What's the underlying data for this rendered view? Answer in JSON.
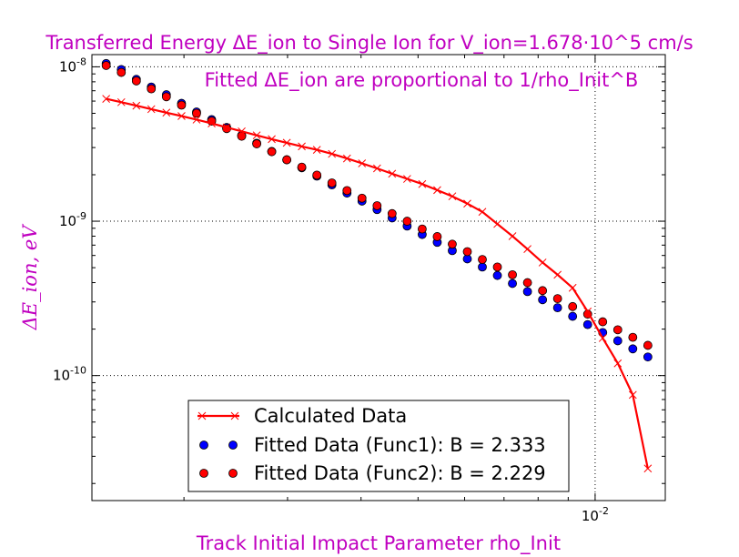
{
  "chart_data": {
    "type": "scatter",
    "title": "Transferred Energy ΔE_ion to Single Ion for  V_ion=1.678·10^5  cm/s",
    "annotation": "Fitted ΔE_ion are proportional to 1/rho_Init^B",
    "xlabel": "Track Initial Impact Parameter rho_Init",
    "ylabel": "ΔE_ion, eV",
    "xscale": "log",
    "yscale": "log",
    "xlim": [
      0.001395,
      0.01316
    ],
    "ylim": [
      1.55e-11,
      1.2e-08
    ],
    "grid": true,
    "legend_position": "lower-center",
    "x_tick_labels": {
      "x": [
        "10^-2"
      ]
    },
    "y_tick_labels": [
      "10^-8",
      "10^-9",
      "10^-10"
    ],
    "series": [
      {
        "name": "Calculated Data",
        "color": "#ff0000",
        "marker": "x",
        "style": "line",
        "x": [
          0.001475,
          0.001565,
          0.00166,
          0.00176,
          0.001867,
          0.001981,
          0.002101,
          0.002229,
          0.002364,
          0.002507,
          0.002659,
          0.00282,
          0.002991,
          0.003172,
          0.003365,
          0.003569,
          0.003786,
          0.004015,
          0.004259,
          0.004517,
          0.004791,
          0.005082,
          0.00539,
          0.005717,
          0.006064,
          0.006431,
          0.006821,
          0.007235,
          0.007674,
          0.00814,
          0.008633,
          0.009157,
          0.009712,
          0.010301,
          0.010926,
          0.011589,
          0.012292
        ],
        "y": [
          6.2e-09,
          5.9e-09,
          5.6e-09,
          5.32e-09,
          5.05e-09,
          4.8e-09,
          4.55e-09,
          4.3e-09,
          4.05e-09,
          3.82e-09,
          3.6e-09,
          3.4e-09,
          3.22e-09,
          3.05e-09,
          2.9e-09,
          2.73e-09,
          2.55e-09,
          2.37e-09,
          2.2e-09,
          2.03e-09,
          1.88e-09,
          1.74e-09,
          1.59e-09,
          1.45e-09,
          1.3e-09,
          1.15e-09,
          9.6e-10,
          8e-10,
          6.6e-10,
          5.4e-10,
          4.5e-10,
          3.7e-10,
          2.6e-10,
          1.75e-10,
          1.2e-10,
          7.5e-11,
          2.5e-11
        ]
      },
      {
        "name": "Fitted Data (Func1): B = 2.333",
        "color": "#0000ff",
        "marker": "o",
        "style": "markers",
        "x": [
          0.001475,
          0.001565,
          0.00166,
          0.00176,
          0.001867,
          0.001981,
          0.002101,
          0.002229,
          0.002364,
          0.002507,
          0.002659,
          0.00282,
          0.002991,
          0.003172,
          0.003365,
          0.003569,
          0.003786,
          0.004015,
          0.004259,
          0.004517,
          0.004791,
          0.005082,
          0.00539,
          0.005717,
          0.006064,
          0.006431,
          0.006821,
          0.007235,
          0.007674,
          0.00814,
          0.008633,
          0.009157,
          0.009712,
          0.010301,
          0.010926,
          0.011589,
          0.012292
        ],
        "y": [
          1.05e-08,
          9.6e-09,
          8.3e-09,
          7.4e-09,
          6.6e-09,
          5.8e-09,
          5.1e-09,
          4.55e-09,
          4.05e-09,
          3.6e-09,
          3.2e-09,
          2.83e-09,
          2.5e-09,
          2.22e-09,
          1.96e-09,
          1.72e-09,
          1.52e-09,
          1.35e-09,
          1.19e-09,
          1.05e-09,
          9.3e-10,
          8.2e-10,
          7.3e-10,
          6.45e-10,
          5.7e-10,
          5.05e-10,
          4.45e-10,
          3.95e-10,
          3.5e-10,
          3.1e-10,
          2.75e-10,
          2.42e-10,
          2.14e-10,
          1.9e-10,
          1.68e-10,
          1.49e-10,
          1.32e-10
        ]
      },
      {
        "name": "Fitted Data (Func2): B = 2.229",
        "color": "#ff0000",
        "marker": "o",
        "style": "markers",
        "x": [
          0.001475,
          0.001565,
          0.00166,
          0.00176,
          0.001867,
          0.001981,
          0.002101,
          0.002229,
          0.002364,
          0.002507,
          0.002659,
          0.00282,
          0.002991,
          0.003172,
          0.003365,
          0.003569,
          0.003786,
          0.004015,
          0.004259,
          0.004517,
          0.004791,
          0.005082,
          0.00539,
          0.005717,
          0.006064,
          0.006431,
          0.006821,
          0.007235,
          0.007674,
          0.00814,
          0.008633,
          0.009157,
          0.009712,
          0.010301,
          0.010926,
          0.011589,
          0.012292
        ],
        "y": [
          1.02e-08,
          9.2e-09,
          8.1e-09,
          7.2e-09,
          6.4e-09,
          5.65e-09,
          5e-09,
          4.45e-09,
          3.98e-09,
          3.55e-09,
          3.17e-09,
          2.82e-09,
          2.5e-09,
          2.24e-09,
          1.99e-09,
          1.77e-09,
          1.58e-09,
          1.41e-09,
          1.26e-09,
          1.12e-09,
          1e-09,
          8.9e-10,
          7.95e-10,
          7.1e-10,
          6.35e-10,
          5.65e-10,
          5.05e-10,
          4.5e-10,
          4e-10,
          3.55e-10,
          3.15e-10,
          2.8e-10,
          2.5e-10,
          2.23e-10,
          1.98e-10,
          1.77e-10,
          1.57e-10
        ]
      }
    ]
  }
}
